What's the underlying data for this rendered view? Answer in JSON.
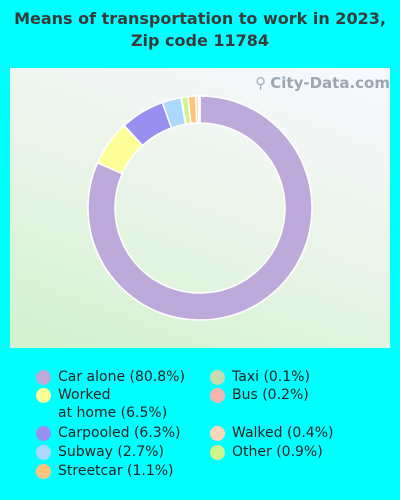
{
  "title": "Means of transportation to work in 2023, Zip code 11784",
  "watermark": "City-Data.com",
  "chart_data": {
    "type": "pie",
    "style": "donut",
    "title": "Means of transportation to work in 2023, Zip code 11784",
    "series": [
      {
        "name": "Car alone",
        "value": 80.8,
        "color": "#bda9da",
        "legend": "Car alone (80.8%)"
      },
      {
        "name": "Worked at home",
        "value": 6.5,
        "color": "#ffff99",
        "legend": "Worked\nat home (6.5%)"
      },
      {
        "name": "Carpooled",
        "value": 6.3,
        "color": "#9790f0",
        "legend": "Carpooled (6.3%)"
      },
      {
        "name": "Subway",
        "value": 2.7,
        "color": "#acd8fb",
        "legend": "Subway (2.7%)"
      },
      {
        "name": "Taxi",
        "value": 0.1,
        "color": "#c8dcb2",
        "legend": "Taxi (0.1%)"
      },
      {
        "name": "Other",
        "value": 0.9,
        "color": "#cdf58c",
        "legend": "Other (0.9%)"
      },
      {
        "name": "Streetcar",
        "value": 1.1,
        "color": "#fdc47e",
        "legend": "Streetcar (1.1%)"
      },
      {
        "name": "Walked",
        "value": 0.4,
        "color": "#fbd7b7",
        "legend": "Walked (0.4%)"
      },
      {
        "name": "Bus",
        "value": 0.2,
        "color": "#f7b5b2",
        "legend": "Bus (0.2%)"
      }
    ],
    "legend_columns": [
      [
        "Car alone",
        "Worked at home",
        "Carpooled",
        "Subway",
        "Streetcar"
      ],
      [
        "Taxi",
        "Bus",
        "Walked",
        "Other"
      ]
    ]
  }
}
